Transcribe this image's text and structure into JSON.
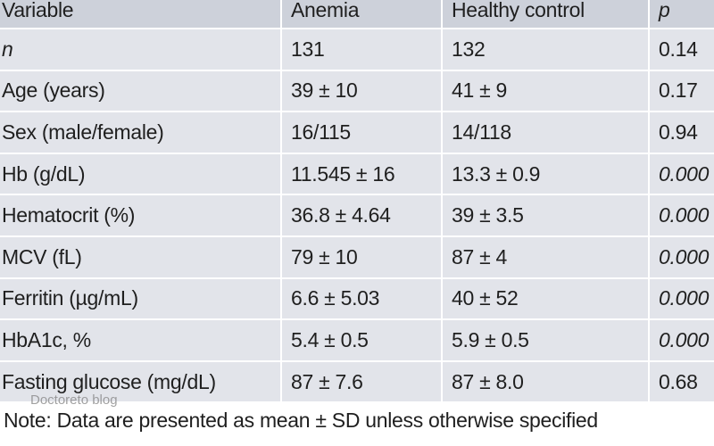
{
  "table": {
    "header": [
      "Variable",
      "Anemia",
      "Healthy control",
      "p"
    ],
    "rows": [
      [
        "n",
        "131",
        "132",
        "0.14"
      ],
      [
        "Age (years)",
        "39 ± 10",
        "41 ± 9",
        "0.17"
      ],
      [
        "Sex (male/female)",
        "16/115",
        "14/118",
        "0.94"
      ],
      [
        "Hb (g/dL)",
        "11.545 ± 16",
        "13.3 ± 0.9",
        "0.000"
      ],
      [
        "Hematocrit (%)",
        "36.8 ± 4.64",
        "39 ± 3.5",
        "0.000"
      ],
      [
        "MCV (fL)",
        "79 ± 10",
        "87 ± 4",
        "0.000"
      ],
      [
        "Ferritin (µg/mL)",
        "6.6 ± 5.03",
        "40 ± 52",
        "0.000"
      ],
      [
        "HbA1c, %",
        "5.4 ± 0.5",
        "5.9 ± 0.5",
        "0.000"
      ],
      [
        "Fasting glucose (mg/dL)",
        "87 ± 7.6",
        "87 ± 8.0",
        "0.68"
      ]
    ]
  },
  "note": "Note: Data are presented as mean ± SD unless otherwise specified",
  "watermark": "Doctoreto blog"
}
